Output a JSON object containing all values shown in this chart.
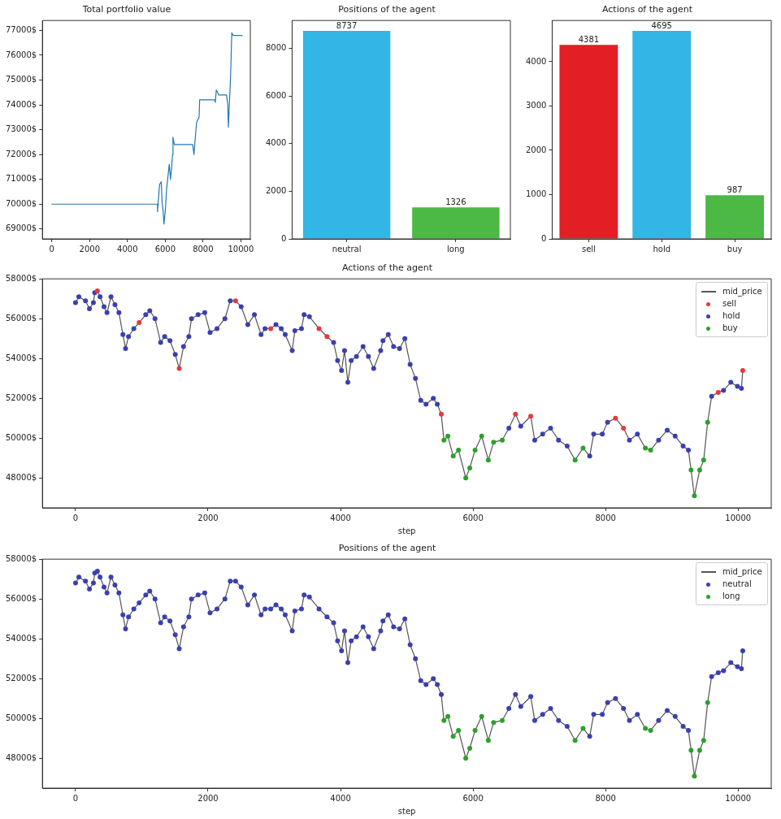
{
  "chart_data": [
    {
      "type": "line",
      "title": "Total portfolio value",
      "xlim": [
        -500,
        10500
      ],
      "xticks": [
        0,
        2000,
        4000,
        6000,
        8000,
        10000
      ],
      "ylim": [
        68600,
        77400
      ],
      "yticks": [
        {
          "value": 69000,
          "label": "69000$"
        },
        {
          "value": 70000,
          "label": "70000$"
        },
        {
          "value": 71000,
          "label": "71000$"
        },
        {
          "value": 72000,
          "label": "72000$"
        },
        {
          "value": 73000,
          "label": "73000$"
        },
        {
          "value": 74000,
          "label": "74000$"
        },
        {
          "value": 75000,
          "label": "75000$"
        },
        {
          "value": 76000,
          "label": "76000$"
        },
        {
          "value": 77000,
          "label": "77000$"
        }
      ],
      "series": [
        {
          "color": "#1f77b4",
          "x": [
            0,
            5590,
            5590,
            5700,
            5790,
            5830,
            5890,
            5930,
            6000,
            6070,
            6210,
            6280,
            6390,
            6410,
            6480,
            6970,
            7450,
            7520,
            7590,
            7660,
            7790,
            7820,
            8620,
            8650,
            8700,
            8830,
            9240,
            9310,
            9340,
            9390,
            9450,
            9520,
            9590,
            10070
          ],
          "values": [
            70000,
            70000,
            69700,
            70800,
            70900,
            70100,
            69700,
            69200,
            69700,
            70600,
            71600,
            71000,
            72000,
            72700,
            72400,
            72400,
            72400,
            72000,
            72700,
            73300,
            73500,
            74200,
            74200,
            74100,
            74600,
            74400,
            74400,
            74000,
            73100,
            74000,
            75000,
            76900,
            76800,
            76800
          ]
        }
      ]
    },
    {
      "type": "bar",
      "title": "Positions of the agent",
      "categories": [
        "neutral",
        "long"
      ],
      "values": [
        8737,
        1326
      ],
      "colors": [
        "#33b5e5",
        "#4cb944"
      ],
      "ylim": [
        0,
        9174
      ],
      "yticks": [
        0,
        2000,
        4000,
        6000,
        8000
      ],
      "data_labels": true
    },
    {
      "type": "bar",
      "title": "Actions of the agent",
      "categories": [
        "sell",
        "hold",
        "buy"
      ],
      "values": [
        4381,
        4695,
        987
      ],
      "colors": [
        "#e31e24",
        "#33b5e5",
        "#4cb944"
      ],
      "ylim": [
        0,
        4930
      ],
      "yticks": [
        0,
        1000,
        2000,
        3000,
        4000
      ],
      "data_labels": true
    },
    {
      "type": "scatter",
      "title": "Actions of the agent",
      "xlabel": "step",
      "legend": "top right",
      "marker": "circle",
      "xlim": [
        -500,
        10500
      ],
      "xticks": [
        0,
        2000,
        4000,
        6000,
        8000,
        10000
      ],
      "ylim": [
        46500,
        58000
      ],
      "yticks": [
        {
          "value": 48000,
          "label": "48000$"
        },
        {
          "value": 50000,
          "label": "50000$"
        },
        {
          "value": 52000,
          "label": "52000$"
        },
        {
          "value": 54000,
          "label": "54000$"
        },
        {
          "value": 56000,
          "label": "56000$"
        },
        {
          "value": 58000,
          "label": "58000$"
        }
      ],
      "series": [
        {
          "name": "mid_price",
          "type": "line",
          "marker": "none",
          "color": "#555555",
          "x": [
            0,
            50,
            150,
            210,
            270,
            290,
            330,
            370,
            430,
            475,
            535,
            595,
            655,
            715,
            755,
            800,
            880,
            960,
            1060,
            1120,
            1200,
            1285,
            1345,
            1425,
            1505,
            1565,
            1630,
            1710,
            1750,
            1850,
            1950,
            2030,
            2135,
            2255,
            2335,
            2415,
            2500,
            2600,
            2700,
            2800,
            2860,
            2945,
            3025,
            3105,
            3165,
            3270,
            3310,
            3410,
            3450,
            3530,
            3675,
            3795,
            3895,
            3955,
            4015,
            4060,
            4110,
            4160,
            4240,
            4340,
            4420,
            4500,
            4605,
            4640,
            4720,
            4800,
            4890,
            4970,
            5050,
            5130,
            5210,
            5290,
            5400,
            5460,
            5520,
            5560,
            5620,
            5700,
            5780,
            5890,
            5950,
            6030,
            6130,
            6230,
            6310,
            6440,
            6540,
            6640,
            6720,
            6870,
            6930,
            7050,
            7170,
            7290,
            7420,
            7540,
            7660,
            7760,
            7820,
            7950,
            8030,
            8150,
            8270,
            8360,
            8480,
            8600,
            8680,
            8800,
            8930,
            9050,
            9170,
            9250,
            9290,
            9340,
            9420,
            9480,
            9540,
            9600,
            9700,
            9780,
            9890,
            9990,
            10050,
            10070
          ],
          "values": [
            56800,
            57100,
            56900,
            56500,
            56800,
            57300,
            57400,
            57100,
            56600,
            56300,
            57100,
            56700,
            56300,
            55200,
            54500,
            55100,
            55500,
            55800,
            56200,
            56400,
            56000,
            54800,
            55100,
            54900,
            54200,
            53500,
            54600,
            55100,
            56000,
            56200,
            56300,
            55300,
            55500,
            56000,
            56900,
            56900,
            56600,
            55700,
            56200,
            55200,
            55500,
            55500,
            55700,
            55500,
            55200,
            54400,
            55400,
            55500,
            56200,
            56100,
            55500,
            55100,
            54800,
            53900,
            53400,
            54400,
            52800,
            53900,
            54100,
            54600,
            54100,
            53500,
            54400,
            54900,
            55200,
            54600,
            54500,
            55000,
            53700,
            53000,
            51900,
            51700,
            52000,
            51700,
            51200,
            49900,
            50100,
            49100,
            49400,
            48000,
            48500,
            49400,
            50100,
            48900,
            49800,
            49900,
            50500,
            51200,
            50600,
            51100,
            49900,
            50200,
            50500,
            49900,
            49600,
            48900,
            49500,
            49100,
            50200,
            50200,
            50800,
            51000,
            50500,
            49900,
            50200,
            49500,
            49400,
            49900,
            50400,
            50100,
            49600,
            49400,
            48400,
            47100,
            48400,
            48900,
            50800,
            52100,
            52300,
            52400,
            52800,
            52600,
            52500,
            53400
          ]
        },
        {
          "name": "sell",
          "color": "#e8383d",
          "x": [
            330,
            960,
            1565,
            2415,
            2945,
            3675,
            3795,
            5520,
            6640,
            6870,
            8150,
            8270,
            9700,
            10070
          ],
          "values": [
            57400,
            55800,
            53500,
            56900,
            55500,
            55500,
            55100,
            51200,
            51200,
            51100,
            51000,
            50500,
            52300,
            53400
          ]
        },
        {
          "name": "hold",
          "color": "#3a3fb0",
          "x": [
            0,
            50,
            150,
            210,
            270,
            290,
            370,
            430,
            475,
            535,
            595,
            655,
            715,
            755,
            800,
            880,
            1060,
            1120,
            1200,
            1285,
            1345,
            1425,
            1505,
            1630,
            1710,
            1750,
            1850,
            1950,
            2030,
            2135,
            2255,
            2335,
            2500,
            2600,
            2700,
            2800,
            2860,
            3025,
            3105,
            3165,
            3270,
            3310,
            3410,
            3450,
            3530,
            3895,
            3955,
            4015,
            4060,
            4110,
            4160,
            4240,
            4340,
            4420,
            4500,
            4605,
            4640,
            4720,
            4800,
            4890,
            4970,
            5050,
            5130,
            5210,
            5290,
            5400,
            5460,
            6540,
            6720,
            6930,
            7050,
            7170,
            7290,
            7420,
            7760,
            7820,
            7950,
            8030,
            8360,
            8480,
            8800,
            8930,
            9050,
            9170,
            9250,
            9600,
            9780,
            9890,
            9990,
            10050
          ],
          "values": [
            56800,
            57100,
            56900,
            56500,
            56800,
            57300,
            57100,
            56600,
            56300,
            57100,
            56700,
            56300,
            55200,
            54500,
            55100,
            55500,
            56200,
            56400,
            56000,
            54800,
            55100,
            54900,
            54200,
            54600,
            55100,
            56000,
            56200,
            56300,
            55300,
            55500,
            56000,
            56900,
            56600,
            55700,
            56200,
            55200,
            55500,
            55700,
            55500,
            55200,
            54400,
            55400,
            55500,
            56200,
            56100,
            54800,
            53900,
            53400,
            54400,
            52800,
            53900,
            54100,
            54600,
            54100,
            53500,
            54400,
            54900,
            55200,
            54600,
            54500,
            55000,
            53700,
            53000,
            51900,
            51700,
            52000,
            51700,
            50500,
            50600,
            49900,
            50200,
            50500,
            49900,
            49600,
            49100,
            50200,
            50200,
            50800,
            49900,
            50200,
            49900,
            50400,
            50100,
            49600,
            49400,
            52100,
            52400,
            52800,
            52600,
            52500
          ]
        },
        {
          "name": "buy",
          "color": "#2ca02c",
          "x": [
            5560,
            5620,
            5700,
            5780,
            5890,
            5950,
            6030,
            6130,
            6230,
            6310,
            6440,
            7540,
            7660,
            8600,
            8680,
            9290,
            9340,
            9420,
            9480,
            9540
          ],
          "values": [
            49900,
            50100,
            49100,
            49400,
            48000,
            48500,
            49400,
            50100,
            48900,
            49800,
            49900,
            48900,
            49500,
            49500,
            49400,
            48400,
            47100,
            48400,
            48900,
            50800
          ]
        }
      ]
    },
    {
      "type": "scatter",
      "title": "Positions of the agent",
      "xlabel": "step",
      "legend": "top right",
      "marker": "circle",
      "xlim": [
        -500,
        10500
      ],
      "xticks": [
        0,
        2000,
        4000,
        6000,
        8000,
        10000
      ],
      "ylim": [
        46500,
        58000
      ],
      "yticks": [
        {
          "value": 48000,
          "label": "48000$"
        },
        {
          "value": 50000,
          "label": "50000$"
        },
        {
          "value": 52000,
          "label": "52000$"
        },
        {
          "value": 54000,
          "label": "54000$"
        },
        {
          "value": 56000,
          "label": "56000$"
        },
        {
          "value": 58000,
          "label": "58000$"
        }
      ],
      "series": [
        {
          "name": "mid_price",
          "type": "line",
          "marker": "none",
          "color": "#555555",
          "x": [
            0,
            50,
            150,
            210,
            270,
            290,
            330,
            370,
            430,
            475,
            535,
            595,
            655,
            715,
            755,
            800,
            880,
            960,
            1060,
            1120,
            1200,
            1285,
            1345,
            1425,
            1505,
            1565,
            1630,
            1710,
            1750,
            1850,
            1950,
            2030,
            2135,
            2255,
            2335,
            2415,
            2500,
            2600,
            2700,
            2800,
            2860,
            2945,
            3025,
            3105,
            3165,
            3270,
            3310,
            3410,
            3450,
            3530,
            3675,
            3795,
            3895,
            3955,
            4015,
            4060,
            4110,
            4160,
            4240,
            4340,
            4420,
            4500,
            4605,
            4640,
            4720,
            4800,
            4890,
            4970,
            5050,
            5130,
            5210,
            5290,
            5400,
            5460,
            5520,
            5560,
            5620,
            5700,
            5780,
            5890,
            5950,
            6030,
            6130,
            6230,
            6310,
            6440,
            6540,
            6640,
            6720,
            6870,
            6930,
            7050,
            7170,
            7290,
            7420,
            7540,
            7660,
            7760,
            7820,
            7950,
            8030,
            8150,
            8270,
            8360,
            8480,
            8600,
            8680,
            8800,
            8930,
            9050,
            9170,
            9250,
            9290,
            9340,
            9420,
            9480,
            9540,
            9600,
            9700,
            9780,
            9890,
            9990,
            10050,
            10070
          ],
          "values": [
            56800,
            57100,
            56900,
            56500,
            56800,
            57300,
            57400,
            57100,
            56600,
            56300,
            57100,
            56700,
            56300,
            55200,
            54500,
            55100,
            55500,
            55800,
            56200,
            56400,
            56000,
            54800,
            55100,
            54900,
            54200,
            53500,
            54600,
            55100,
            56000,
            56200,
            56300,
            55300,
            55500,
            56000,
            56900,
            56900,
            56600,
            55700,
            56200,
            55200,
            55500,
            55500,
            55700,
            55500,
            55200,
            54400,
            55400,
            55500,
            56200,
            56100,
            55500,
            55100,
            54800,
            53900,
            53400,
            54400,
            52800,
            53900,
            54100,
            54600,
            54100,
            53500,
            54400,
            54900,
            55200,
            54600,
            54500,
            55000,
            53700,
            53000,
            51900,
            51700,
            52000,
            51700,
            51200,
            49900,
            50100,
            49100,
            49400,
            48000,
            48500,
            49400,
            50100,
            48900,
            49800,
            49900,
            50500,
            51200,
            50600,
            51100,
            49900,
            50200,
            50500,
            49900,
            49600,
            48900,
            49500,
            49100,
            50200,
            50200,
            50800,
            51000,
            50500,
            49900,
            50200,
            49500,
            49400,
            49900,
            50400,
            50100,
            49600,
            49400,
            48400,
            47100,
            48400,
            48900,
            50800,
            52100,
            52300,
            52400,
            52800,
            52600,
            52500,
            53400
          ]
        },
        {
          "name": "neutral",
          "color": "#3a3fb0",
          "x": [
            0,
            50,
            150,
            210,
            270,
            290,
            330,
            370,
            430,
            475,
            535,
            595,
            655,
            715,
            755,
            800,
            880,
            960,
            1060,
            1120,
            1200,
            1285,
            1345,
            1425,
            1505,
            1565,
            1630,
            1710,
            1750,
            1850,
            1950,
            2030,
            2135,
            2255,
            2335,
            2415,
            2500,
            2600,
            2700,
            2800,
            2860,
            2945,
            3025,
            3105,
            3165,
            3270,
            3310,
            3410,
            3450,
            3530,
            3675,
            3795,
            3895,
            3955,
            4015,
            4060,
            4110,
            4160,
            4240,
            4340,
            4420,
            4500,
            4605,
            4640,
            4720,
            4800,
            4890,
            4970,
            5050,
            5130,
            5210,
            5290,
            5400,
            5460,
            5520,
            6540,
            6640,
            6720,
            6870,
            6930,
            7050,
            7170,
            7290,
            7420,
            7760,
            7820,
            7950,
            8030,
            8150,
            8270,
            8360,
            8480,
            8800,
            8930,
            9050,
            9170,
            9250,
            9600,
            9700,
            9780,
            9890,
            9990,
            10050,
            10070
          ],
          "values": [
            56800,
            57100,
            56900,
            56500,
            56800,
            57300,
            57400,
            57100,
            56600,
            56300,
            57100,
            56700,
            56300,
            55200,
            54500,
            55100,
            55500,
            55800,
            56200,
            56400,
            56000,
            54800,
            55100,
            54900,
            54200,
            53500,
            54600,
            55100,
            56000,
            56200,
            56300,
            55300,
            55500,
            56000,
            56900,
            56900,
            56600,
            55700,
            56200,
            55200,
            55500,
            55500,
            55700,
            55500,
            55200,
            54400,
            55400,
            55500,
            56200,
            56100,
            55500,
            55100,
            54800,
            53900,
            53400,
            54400,
            52800,
            53900,
            54100,
            54600,
            54100,
            53500,
            54400,
            54900,
            55200,
            54600,
            54500,
            55000,
            53700,
            53000,
            51900,
            51700,
            52000,
            51700,
            51200,
            50500,
            51200,
            50600,
            51100,
            49900,
            50200,
            50500,
            49900,
            49600,
            49100,
            50200,
            50200,
            50800,
            51000,
            50500,
            49900,
            50200,
            49900,
            50400,
            50100,
            49600,
            49400,
            52100,
            52300,
            52400,
            52800,
            52600,
            52500,
            53400
          ]
        },
        {
          "name": "long",
          "color": "#2ca02c",
          "x": [
            5560,
            5620,
            5700,
            5780,
            5890,
            5950,
            6030,
            6130,
            6230,
            6310,
            6440,
            7540,
            7660,
            8600,
            8680,
            9290,
            9340,
            9420,
            9480,
            9540
          ],
          "values": [
            49900,
            50100,
            49100,
            49400,
            48000,
            48500,
            49400,
            50100,
            48900,
            49800,
            49900,
            48900,
            49500,
            49500,
            49400,
            48400,
            47100,
            48400,
            48900,
            50800
          ]
        }
      ]
    }
  ]
}
